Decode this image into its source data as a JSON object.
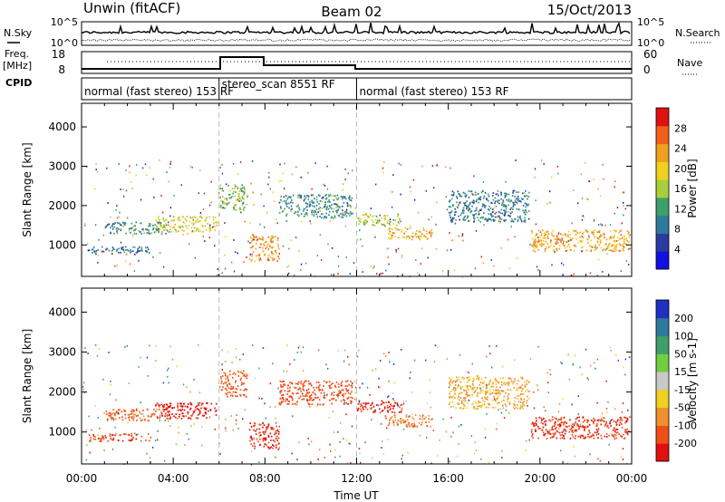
{
  "header": {
    "station": "Unwin (fitACF)",
    "beam": "Beam 02",
    "date": "15/Oct/2013"
  },
  "strip_labels": {
    "nsky": "N.Sky",
    "nsearch": "N.Search",
    "freq_line1": "Freq.",
    "freq_line2": "[MHz]",
    "nave": "Nave",
    "cpid": "CPID"
  },
  "strip_ticks": {
    "noise_left": [
      "10^5",
      "10^0"
    ],
    "noise_right": [
      "10^5",
      "10^0"
    ],
    "freq_left": [
      "18",
      "8"
    ],
    "freq_right": [
      "60",
      "0"
    ]
  },
  "cpid_segments": [
    {
      "label": "normal (fast stereo) 153 RF",
      "start_hour": 0,
      "end_hour": 6
    },
    {
      "label": "stereo_scan 8551 RF",
      "start_hour": 6,
      "end_hour": 12
    },
    {
      "label": "normal (fast stereo) 153 RF",
      "start_hour": 12,
      "end_hour": 24
    }
  ],
  "colors": {
    "axis": "#000000",
    "divider": "#bbbbbb",
    "power_scale": [
      "#1010e0",
      "#2a3aa0",
      "#2f7a9c",
      "#3f9f6a",
      "#a8cf3a",
      "#f0d020",
      "#f0a020",
      "#f06018",
      "#e01010"
    ],
    "velocity_scale": [
      "#2030c0",
      "#2f7a9c",
      "#3f9f6a",
      "#70cf40",
      "#c8c8c8",
      "#f0d020",
      "#f09030",
      "#f05018",
      "#e01010"
    ]
  },
  "chart_data": [
    {
      "type": "heatmap",
      "name_key": "power",
      "xlabel": "",
      "ylabel": "Slant Range [km]",
      "xlim": [
        0,
        24
      ],
      "ylim": [
        200,
        4600
      ],
      "y_ticks": [
        "1000",
        "2000",
        "3000",
        "4000"
      ],
      "colorbar_label": "Power [dB]",
      "colorbar_ticks": [
        "4",
        "8",
        "12",
        "16",
        "20",
        "24",
        "28"
      ],
      "colorbar_range": [
        0,
        30
      ],
      "bands": [
        {
          "t0": 0.3,
          "t1": 3.0,
          "r0": 780,
          "r1": 980,
          "value": 8
        },
        {
          "t0": 1.0,
          "t1": 3.8,
          "r0": 1300,
          "r1": 1600,
          "value": 10
        },
        {
          "t0": 3.2,
          "t1": 5.9,
          "r0": 1350,
          "r1": 1750,
          "value": 18
        },
        {
          "t0": 6.0,
          "t1": 7.2,
          "r0": 1900,
          "r1": 2550,
          "value": 14
        },
        {
          "t0": 7.3,
          "t1": 8.6,
          "r0": 600,
          "r1": 1250,
          "value": 22
        },
        {
          "t0": 8.6,
          "t1": 11.8,
          "r0": 1700,
          "r1": 2300,
          "value": 10
        },
        {
          "t0": 12.0,
          "t1": 14.0,
          "r0": 1500,
          "r1": 1800,
          "value": 15
        },
        {
          "t0": 13.2,
          "t1": 15.3,
          "r0": 1150,
          "r1": 1450,
          "value": 20
        },
        {
          "t0": 16.0,
          "t1": 19.5,
          "r0": 1600,
          "r1": 2400,
          "value": 9
        },
        {
          "t0": 19.6,
          "t1": 23.9,
          "r0": 850,
          "r1": 1400,
          "value": 21
        }
      ]
    },
    {
      "type": "heatmap",
      "name_key": "velocity",
      "xlabel": "Time UT",
      "ylabel": "Slant Range [km]",
      "xlim": [
        0,
        24
      ],
      "ylim": [
        200,
        4600
      ],
      "x_ticks": [
        "00:00",
        "04:00",
        "08:00",
        "12:00",
        "16:00",
        "20:00",
        "00:00"
      ],
      "y_ticks": [
        "1000",
        "2000",
        "3000",
        "4000"
      ],
      "colorbar_label": "Velocity [m s-1]",
      "colorbar_ticks": [
        "200",
        "100",
        "50",
        "15",
        "-15",
        "-50",
        "-100",
        "-200"
      ],
      "colorbar_range": [
        -250,
        250
      ],
      "bands": [
        {
          "t0": 0.3,
          "t1": 3.0,
          "r0": 780,
          "r1": 980,
          "value": -180
        },
        {
          "t0": 1.0,
          "t1": 3.8,
          "r0": 1300,
          "r1": 1600,
          "value": -150
        },
        {
          "t0": 3.2,
          "t1": 5.9,
          "r0": 1350,
          "r1": 1750,
          "value": -220
        },
        {
          "t0": 6.0,
          "t1": 7.2,
          "r0": 1900,
          "r1": 2550,
          "value": -160
        },
        {
          "t0": 7.3,
          "t1": 8.6,
          "r0": 600,
          "r1": 1250,
          "value": -200
        },
        {
          "t0": 8.6,
          "t1": 11.8,
          "r0": 1700,
          "r1": 2300,
          "value": -170
        },
        {
          "t0": 12.0,
          "t1": 14.0,
          "r0": 1500,
          "r1": 1800,
          "value": -210
        },
        {
          "t0": 13.2,
          "t1": 15.3,
          "r0": 1150,
          "r1": 1450,
          "value": -140
        },
        {
          "t0": 16.0,
          "t1": 19.5,
          "r0": 1600,
          "r1": 2400,
          "value": -90
        },
        {
          "t0": 19.6,
          "t1": 23.9,
          "r0": 850,
          "r1": 1400,
          "value": -190
        }
      ]
    }
  ]
}
